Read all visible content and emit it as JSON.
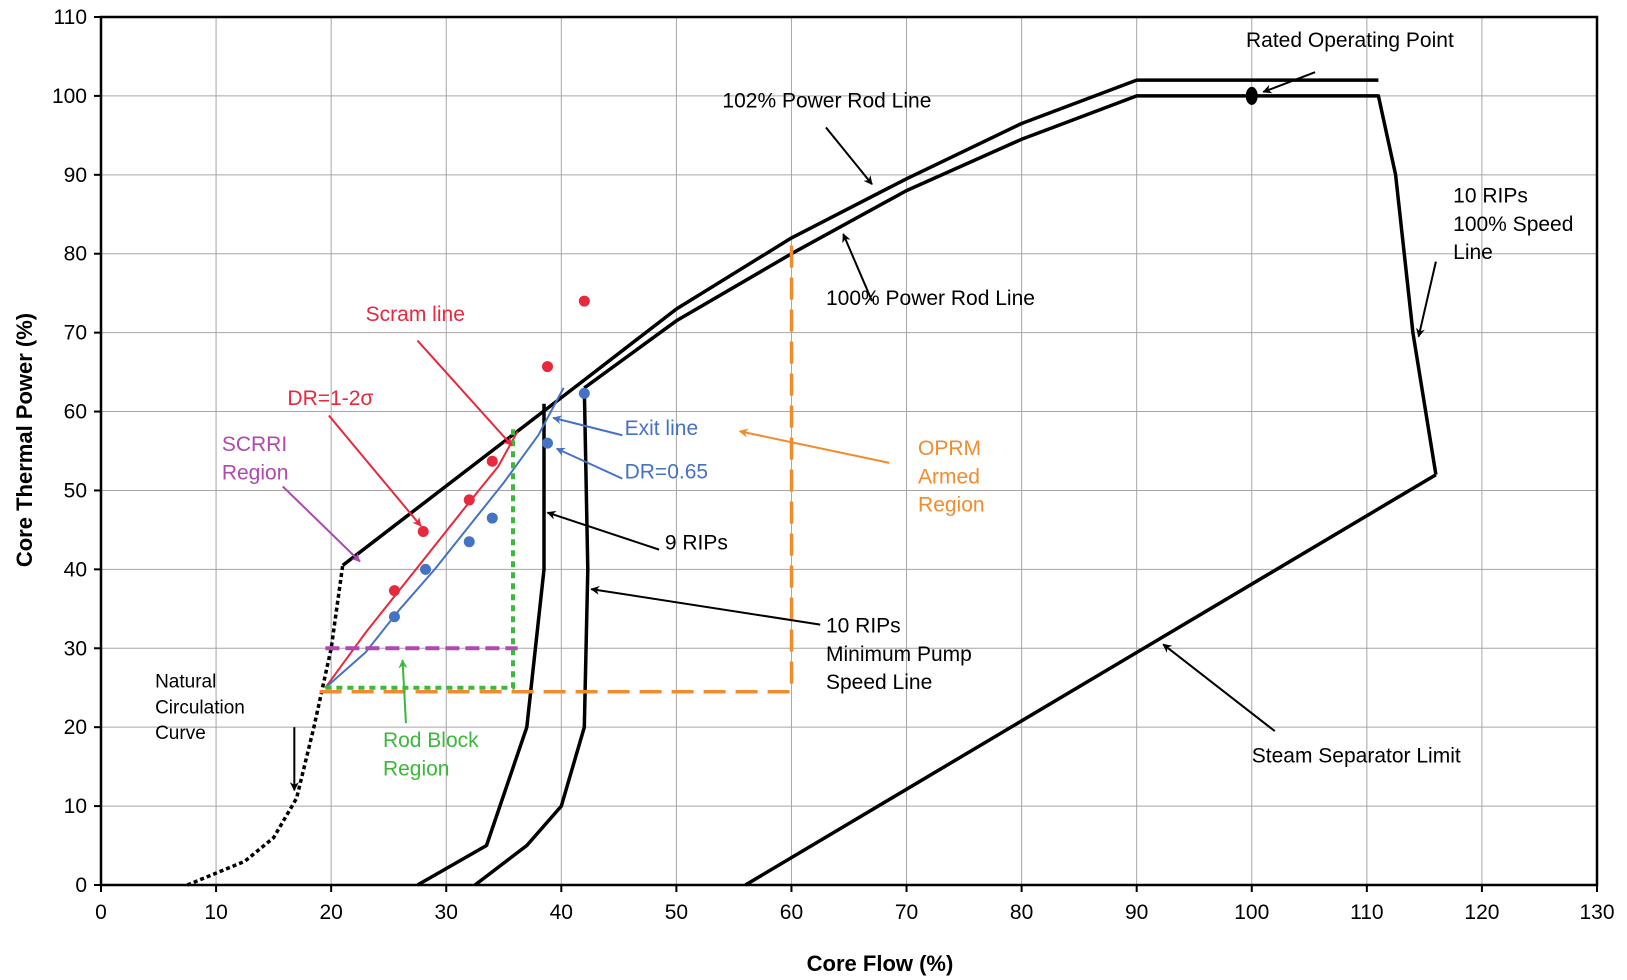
{
  "chart_data": {
    "type": "line",
    "xlabel": "Core Flow (%)",
    "ylabel": "Core Thermal Power (%)",
    "xlim": [
      0,
      130
    ],
    "ylim": [
      0,
      110
    ],
    "xticks": [
      0,
      10,
      20,
      30,
      40,
      50,
      60,
      70,
      80,
      90,
      100,
      110,
      120,
      130
    ],
    "yticks": [
      0,
      10,
      20,
      30,
      40,
      50,
      60,
      70,
      80,
      90,
      100,
      110
    ],
    "grid": true,
    "legend": "none",
    "colors": {
      "boundary": "#000000",
      "scram": "#e8283c",
      "exit": "#4472c4",
      "scrri": "#b048b0",
      "rod_block": "#3cb83c",
      "oprm": "#f08c2c"
    },
    "series": [
      {
        "kind": "line",
        "color": "#000000",
        "width": 3.5,
        "x": [
          21,
          42,
          50,
          60,
          70,
          80,
          90,
          111
        ],
        "y": [
          40.5,
          64,
          73,
          82,
          89.5,
          96.5,
          102,
          102
        ]
      },
      {
        "kind": "line",
        "color": "#000000",
        "width": 3.5,
        "x": [
          42,
          50,
          60,
          70,
          80,
          90,
          111,
          112.5,
          114,
          116
        ],
        "y": [
          63,
          71.5,
          80,
          88,
          94.5,
          100,
          100,
          90,
          70,
          52
        ]
      },
      {
        "kind": "line",
        "color": "#000000",
        "width": 3.5,
        "x": [
          116,
          56
        ],
        "y": [
          52,
          0
        ]
      },
      {
        "kind": "line",
        "color": "#000000",
        "width": 3.5,
        "x": [
          32.5,
          37,
          40,
          42,
          42.3,
          42
        ],
        "y": [
          0,
          5,
          10,
          20,
          40,
          63
        ]
      },
      {
        "kind": "line",
        "color": "#000000",
        "width": 3.5,
        "x": [
          27.5,
          33.5,
          37,
          38.5,
          38.5
        ],
        "y": [
          0,
          5,
          20,
          40,
          61
        ]
      },
      {
        "kind": "line",
        "color": "#000000",
        "width": 3.5,
        "dash": "4 3",
        "x": [
          7.5,
          12.5,
          15,
          17,
          18.5,
          20,
          21
        ],
        "y": [
          0,
          3,
          6,
          11,
          20,
          30,
          40.5
        ]
      },
      {
        "kind": "line",
        "color": "#e8283c",
        "width": 2,
        "x": [
          19.5,
          23,
          26,
          29,
          32,
          34.5,
          36.2
        ],
        "y": [
          25,
          32,
          37.5,
          43,
          48.5,
          53,
          57.5
        ]
      },
      {
        "kind": "line",
        "color": "#4472c4",
        "width": 2,
        "x": [
          19.5,
          23,
          26,
          29,
          32,
          35,
          38,
          40.2
        ],
        "y": [
          25,
          29.5,
          35,
          40,
          45.5,
          51,
          57,
          63
        ]
      },
      {
        "kind": "line",
        "color": "#b048b0",
        "width": 4,
        "dash": "14 6",
        "x": [
          19.5,
          36.2
        ],
        "y": [
          30,
          30
        ]
      },
      {
        "kind": "line",
        "color": "#3cb83c",
        "width": 4,
        "dash": "6 5",
        "x": [
          19.5,
          35.8,
          35.8
        ],
        "y": [
          25,
          25,
          58
        ]
      },
      {
        "kind": "line",
        "color": "#f08c2c",
        "width": 3.5,
        "dash": "22 10",
        "x": [
          19,
          60,
          60
        ],
        "y": [
          24.5,
          24.5,
          82
        ]
      },
      {
        "kind": "points",
        "color": "#e8283c",
        "x": [
          25.5,
          28,
          32,
          34,
          38.8,
          42
        ],
        "y": [
          37.3,
          44.8,
          48.8,
          53.7,
          65.7,
          74
        ]
      },
      {
        "kind": "points",
        "color": "#4472c4",
        "x": [
          25.5,
          28.2,
          32,
          34,
          38.8,
          42
        ],
        "y": [
          34,
          40,
          43.5,
          46.5,
          56,
          62.3
        ]
      },
      {
        "kind": "points",
        "color": "#000000",
        "x": [
          100
        ],
        "y": [
          100
        ]
      }
    ],
    "annotations": [
      {
        "lines": [
          "Rated Operating Point"
        ],
        "color": "#000000",
        "x": 99.5,
        "y": 106.2,
        "anchor": "start"
      },
      {
        "lines": [
          "102% Power Rod Line"
        ],
        "color": "#000000",
        "x": 54,
        "y": 98.5,
        "anchor": "start"
      },
      {
        "lines": [
          "100% Power Rod Line"
        ],
        "color": "#000000",
        "x": 63,
        "y": 73.5,
        "anchor": "start"
      },
      {
        "lines": [
          "10 RIPs",
          "100% Speed",
          "Line"
        ],
        "color": "#000000",
        "x": 117.5,
        "y": 86.5,
        "anchor": "start"
      },
      {
        "lines": [
          "Scram line"
        ],
        "color": "#e8283c",
        "x": 23,
        "y": 71.5,
        "anchor": "start"
      },
      {
        "lines": [
          "DR=1-2σ"
        ],
        "color": "#e8283c",
        "x": 16.2,
        "y": 60.8,
        "anchor": "start"
      },
      {
        "lines": [
          "SCRRI",
          "Region"
        ],
        "color": "#b048b0",
        "x": 10.5,
        "y": 55,
        "anchor": "start"
      },
      {
        "lines": [
          "Exit line"
        ],
        "color": "#4472c4",
        "x": 45.5,
        "y": 57,
        "anchor": "start"
      },
      {
        "lines": [
          "DR=0.65"
        ],
        "color": "#4472c4",
        "x": 45.5,
        "y": 51.5,
        "anchor": "start"
      },
      {
        "lines": [
          "OPRM",
          "Armed",
          "Region"
        ],
        "color": "#f08c2c",
        "x": 71,
        "y": 54.5,
        "anchor": "start"
      },
      {
        "lines": [
          "9 RIPs"
        ],
        "color": "#000000",
        "x": 49,
        "y": 42.5,
        "anchor": "start"
      },
      {
        "lines": [
          "10 RIPs",
          "Minimum Pump",
          "Speed Line"
        ],
        "color": "#000000",
        "x": 63,
        "y": 32,
        "anchor": "start"
      },
      {
        "lines": [
          "Natural",
          "Circulation",
          "Curve"
        ],
        "color": "#000000",
        "x": 4.7,
        "y": 25,
        "anchor": "start",
        "size": 19
      },
      {
        "lines": [
          "Rod Block",
          "Region"
        ],
        "color": "#3cb83c",
        "x": 24.5,
        "y": 17.5,
        "anchor": "start"
      },
      {
        "lines": [
          "Steam Separator Limit"
        ],
        "color": "#000000",
        "x": 100,
        "y": 15.5,
        "anchor": "start"
      }
    ],
    "arrows": [
      {
        "color": "#000000",
        "from": [
          105.5,
          103
        ],
        "to": [
          101,
          100.5
        ]
      },
      {
        "color": "#000000",
        "from": [
          63,
          96
        ],
        "to": [
          67,
          88.8
        ]
      },
      {
        "color": "#000000",
        "from": [
          67,
          74
        ],
        "to": [
          64.5,
          82.5
        ]
      },
      {
        "color": "#000000",
        "from": [
          116,
          79
        ],
        "to": [
          114.5,
          69.5
        ]
      },
      {
        "color": "#e8283c",
        "from": [
          27.5,
          69
        ],
        "to": [
          35.7,
          55.7
        ]
      },
      {
        "color": "#e8283c",
        "from": [
          19.8,
          59.5
        ],
        "to": [
          27.8,
          45.5
        ]
      },
      {
        "color": "#b048b0",
        "from": [
          15.8,
          50.5
        ],
        "to": [
          22.5,
          41
        ]
      },
      {
        "color": "#4472c4",
        "from": [
          45.3,
          57
        ],
        "to": [
          39.3,
          59.2
        ]
      },
      {
        "color": "#4472c4",
        "from": [
          45.3,
          51.5
        ],
        "to": [
          39.6,
          55.3
        ]
      },
      {
        "color": "#f08c2c",
        "from": [
          68.5,
          53.5
        ],
        "to": [
          55.5,
          57.5
        ]
      },
      {
        "color": "#000000",
        "from": [
          48.5,
          42.5
        ],
        "to": [
          38.8,
          47.2
        ]
      },
      {
        "color": "#000000",
        "from": [
          62.5,
          33
        ],
        "to": [
          42.6,
          37.5
        ]
      },
      {
        "color": "#000000",
        "from": [
          16.8,
          20
        ],
        "to": [
          16.8,
          12
        ]
      },
      {
        "color": "#3cb83c",
        "from": [
          26.5,
          20.5
        ],
        "to": [
          26.2,
          28.5
        ]
      },
      {
        "color": "#000000",
        "from": [
          102,
          19.5
        ],
        "to": [
          92.3,
          30.5
        ]
      }
    ]
  }
}
